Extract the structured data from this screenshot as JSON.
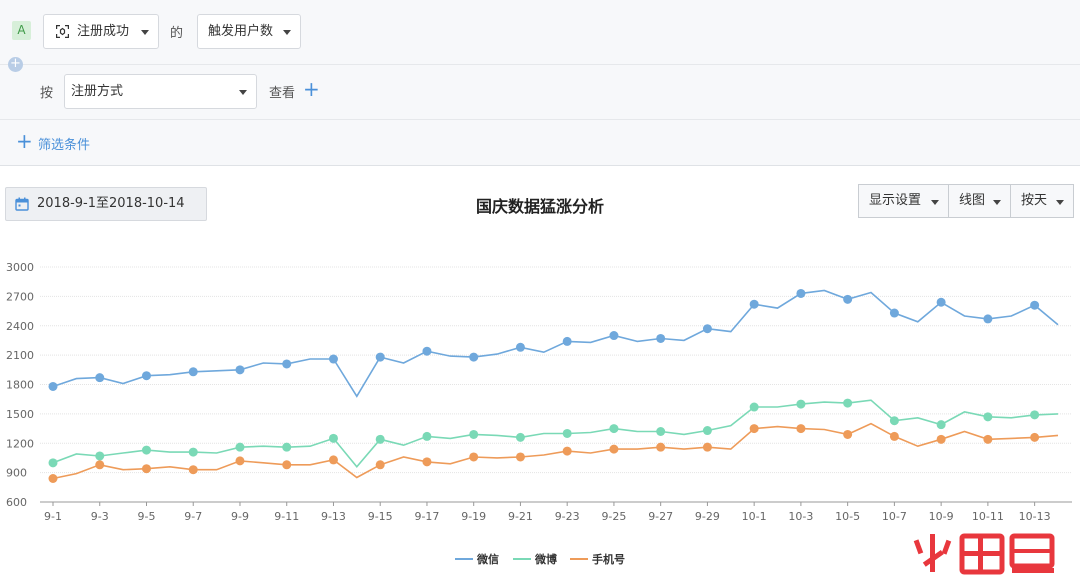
{
  "query": {
    "badge": "A",
    "event_select": {
      "value": "注册成功",
      "icon": "scan-icon"
    },
    "of_label": "的",
    "metric_select": {
      "value": "触发用户数"
    },
    "by_label": "按",
    "group_select": {
      "value": "注册方式"
    },
    "view_label": "查看",
    "filter_label": "筛选条件"
  },
  "toolbar": {
    "date_range": "2018-9-1至2018-10-14",
    "display_settings": "显示设置",
    "chart_type": "线图",
    "granularity": "按天"
  },
  "watermark": "火鲤鱼",
  "colors": {
    "accent": "#4a90d9",
    "wechat": "#6fa8dc",
    "weibo": "#7ad9b6",
    "phone": "#ee9b59"
  },
  "chart_data": {
    "type": "line",
    "title": "国庆数据猛涨分析",
    "x": [
      "9-1",
      "9-2",
      "9-3",
      "9-4",
      "9-5",
      "9-6",
      "9-7",
      "9-8",
      "9-9",
      "9-10",
      "9-11",
      "9-12",
      "9-13",
      "9-14",
      "9-15",
      "9-16",
      "9-17",
      "9-18",
      "9-19",
      "9-20",
      "9-21",
      "9-22",
      "9-23",
      "9-24",
      "9-25",
      "9-26",
      "9-27",
      "9-28",
      "9-29",
      "9-30",
      "10-1",
      "10-2",
      "10-3",
      "10-4",
      "10-5",
      "10-6",
      "10-7",
      "10-8",
      "10-9",
      "10-10",
      "10-11",
      "10-12",
      "10-13",
      "10-14"
    ],
    "xticks": [
      "9-1",
      "9-3",
      "9-5",
      "9-7",
      "9-9",
      "9-11",
      "9-13",
      "9-15",
      "9-17",
      "9-19",
      "9-21",
      "9-23",
      "9-25",
      "9-27",
      "9-29",
      "10-1",
      "10-3",
      "10-5",
      "10-7",
      "10-9",
      "10-11",
      "10-13"
    ],
    "yticks": [
      600,
      900,
      1200,
      1500,
      1800,
      2100,
      2400,
      2700,
      3000
    ],
    "ylim": [
      600,
      3000
    ],
    "grid": true,
    "legend_position": "bottom-center",
    "series": [
      {
        "name": "微信",
        "color": "#6fa8dc",
        "values": [
          1780,
          1860,
          1870,
          1810,
          1890,
          1900,
          1930,
          1940,
          1950,
          2020,
          2010,
          2060,
          2060,
          1680,
          2080,
          2020,
          2140,
          2090,
          2080,
          2110,
          2180,
          2130,
          2240,
          2230,
          2300,
          2240,
          2270,
          2250,
          2370,
          2340,
          2620,
          2580,
          2730,
          2760,
          2670,
          2740,
          2530,
          2440,
          2640,
          2500,
          2470,
          2500,
          2610,
          2410
        ]
      },
      {
        "name": "微博",
        "color": "#7ad9b6",
        "values": [
          1000,
          1090,
          1070,
          1100,
          1130,
          1110,
          1110,
          1100,
          1160,
          1170,
          1160,
          1170,
          1250,
          960,
          1240,
          1180,
          1270,
          1250,
          1290,
          1280,
          1260,
          1300,
          1300,
          1310,
          1350,
          1320,
          1320,
          1290,
          1330,
          1380,
          1570,
          1570,
          1600,
          1620,
          1610,
          1640,
          1430,
          1460,
          1390,
          1520,
          1470,
          1460,
          1490,
          1500
        ]
      },
      {
        "name": "手机号",
        "color": "#ee9b59",
        "values": [
          840,
          890,
          980,
          930,
          940,
          960,
          930,
          930,
          1020,
          1000,
          980,
          980,
          1030,
          850,
          980,
          1060,
          1010,
          990,
          1060,
          1050,
          1060,
          1080,
          1120,
          1100,
          1140,
          1140,
          1160,
          1140,
          1160,
          1140,
          1350,
          1370,
          1350,
          1340,
          1290,
          1400,
          1270,
          1170,
          1240,
          1320,
          1240,
          1250,
          1260,
          1280
        ]
      }
    ]
  }
}
